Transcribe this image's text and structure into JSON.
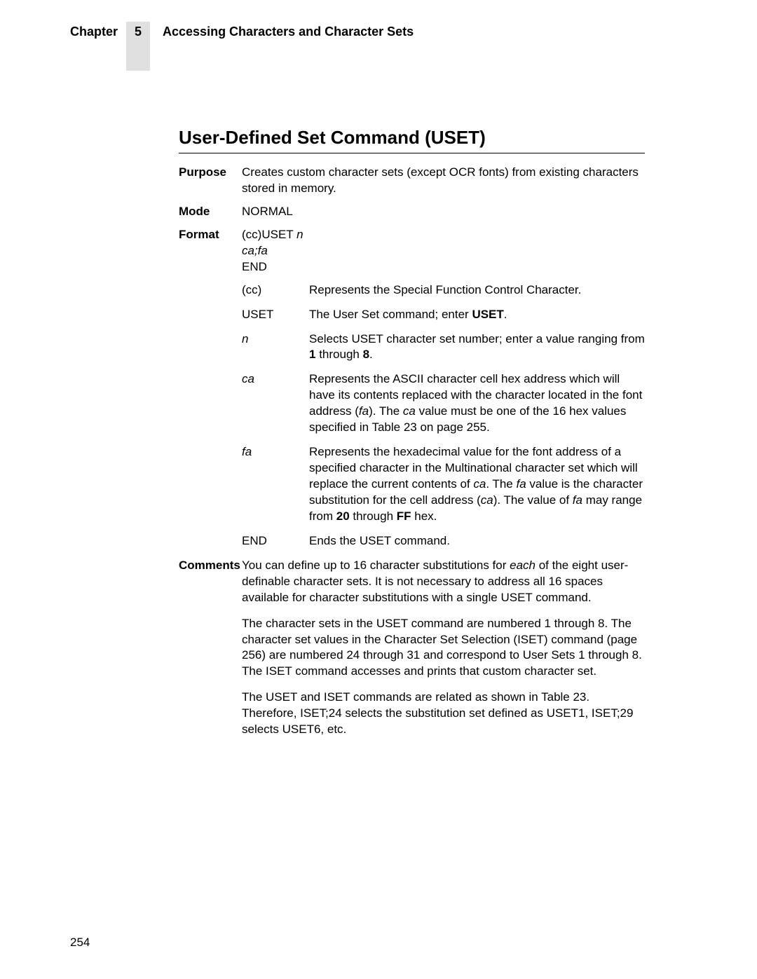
{
  "header": {
    "chapter_label": "Chapter",
    "chapter_number": "5",
    "chapter_title": "Accessing Characters and Character Sets"
  },
  "section_heading": "User-Defined Set Command (USET)",
  "purpose": {
    "label": "Purpose",
    "text": "Creates custom character sets (except OCR fonts) from existing characters stored in memory."
  },
  "mode": {
    "label": "Mode",
    "value": "NORMAL"
  },
  "format": {
    "label": "Format",
    "line1_prefix": "(cc)USET ",
    "line1_n": "n",
    "line2": "ca;fa",
    "line3": "END"
  },
  "params": {
    "cc": {
      "name": "(cc)",
      "desc": "Represents the Special Function Control Character."
    },
    "uset": {
      "name": "USET",
      "desc_pre": "The User Set command; enter ",
      "desc_bold": "USET",
      "desc_post": "."
    },
    "n": {
      "name": "n",
      "desc_pre": "Selects USET character set number; enter a value ranging from ",
      "b1": "1",
      "mid": " through ",
      "b2": "8",
      "desc_post": "."
    },
    "ca": {
      "name": "ca",
      "t1": "Represents the ASCII character cell hex address which will have its contents replaced with the character located in the font address (",
      "fa": "fa",
      "t2": "). The ",
      "ca2": "ca",
      "t3": " value must be one of the 16 hex values specified in Table 23 on page 255."
    },
    "fa": {
      "name": "fa",
      "t1": "Represents the hexadecimal value for the font address of a specified character in the Multinational character set which will replace the current contents of ",
      "ca": "ca",
      "t2": ". The ",
      "fa2": "fa",
      "t3": " value is the character substitution for the cell address (",
      "ca2": "ca",
      "t4": "). The value of ",
      "fa3": "fa",
      "t5": " may range from ",
      "b20": "20",
      "t6": " through ",
      "bFF": "FF",
      "t7": " hex."
    },
    "end": {
      "name": "END",
      "desc": "Ends the USET command."
    }
  },
  "comments": {
    "label": "Comments",
    "p1_a": "You can define up to 16 character substitutions for ",
    "p1_each": "each",
    "p1_b": " of the eight user-definable character sets. It is not necessary to address all 16 spaces available for character substitutions with a single USET command.",
    "p2": "The character sets in the USET command are numbered 1 through 8. The character set values in the Character Set Selection (ISET) command (page 256) are numbered 24 through 31 and correspond to User Sets 1 through 8. The ISET command accesses and prints that custom character set.",
    "p3": "The USET and ISET commands are related as shown in Table 23. Therefore, ISET;24 selects the substitution set defined as USET1, ISET;29 selects USET6, etc."
  },
  "page_number": "254"
}
